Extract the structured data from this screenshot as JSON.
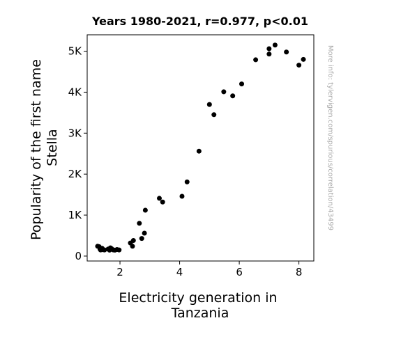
{
  "chart_data": {
    "type": "scatter",
    "title": "Years 1980-2021, r=0.977, p<0.01",
    "xlabel_lines": [
      "Electricity generation in",
      "Tanzania"
    ],
    "ylabel_lines": [
      "Popularity of the first name",
      "Stella"
    ],
    "watermark": "More info: tylervigen.com/spurious/correlation/43499",
    "xlim": [
      0.9,
      8.5
    ],
    "ylim": [
      -120,
      5400
    ],
    "x_ticks": [
      2,
      4,
      6,
      8
    ],
    "x_tick_labels": [
      "2",
      "4",
      "6",
      "8"
    ],
    "y_ticks": [
      0,
      1000,
      2000,
      3000,
      4000,
      5000
    ],
    "y_tick_labels": [
      "0",
      "1K",
      "2K",
      "3K",
      "4K",
      "5K"
    ],
    "grid": false,
    "marker_color": "#000000",
    "points": [
      {
        "x": 1.25,
        "y": 240
      },
      {
        "x": 1.3,
        "y": 230
      },
      {
        "x": 1.33,
        "y": 170
      },
      {
        "x": 1.35,
        "y": 150
      },
      {
        "x": 1.4,
        "y": 190
      },
      {
        "x": 1.43,
        "y": 155
      },
      {
        "x": 1.48,
        "y": 150
      },
      {
        "x": 1.6,
        "y": 170
      },
      {
        "x": 1.65,
        "y": 145
      },
      {
        "x": 1.68,
        "y": 200
      },
      {
        "x": 1.72,
        "y": 180
      },
      {
        "x": 1.78,
        "y": 150
      },
      {
        "x": 1.83,
        "y": 145
      },
      {
        "x": 1.9,
        "y": 160
      },
      {
        "x": 1.97,
        "y": 150
      },
      {
        "x": 2.35,
        "y": 320
      },
      {
        "x": 2.42,
        "y": 240
      },
      {
        "x": 2.45,
        "y": 380
      },
      {
        "x": 2.65,
        "y": 800
      },
      {
        "x": 2.73,
        "y": 430
      },
      {
        "x": 2.82,
        "y": 560
      },
      {
        "x": 2.85,
        "y": 1120
      },
      {
        "x": 3.32,
        "y": 1410
      },
      {
        "x": 3.43,
        "y": 1320
      },
      {
        "x": 4.08,
        "y": 1460
      },
      {
        "x": 4.25,
        "y": 1810
      },
      {
        "x": 4.65,
        "y": 2560
      },
      {
        "x": 5.0,
        "y": 3700
      },
      {
        "x": 5.15,
        "y": 3450
      },
      {
        "x": 5.48,
        "y": 4010
      },
      {
        "x": 5.78,
        "y": 3910
      },
      {
        "x": 6.08,
        "y": 4200
      },
      {
        "x": 6.55,
        "y": 4790
      },
      {
        "x": 7.0,
        "y": 5060
      },
      {
        "x": 7.0,
        "y": 4930
      },
      {
        "x": 7.2,
        "y": 5150
      },
      {
        "x": 7.58,
        "y": 4980
      },
      {
        "x": 8.0,
        "y": 4660
      },
      {
        "x": 8.15,
        "y": 4800
      }
    ]
  }
}
